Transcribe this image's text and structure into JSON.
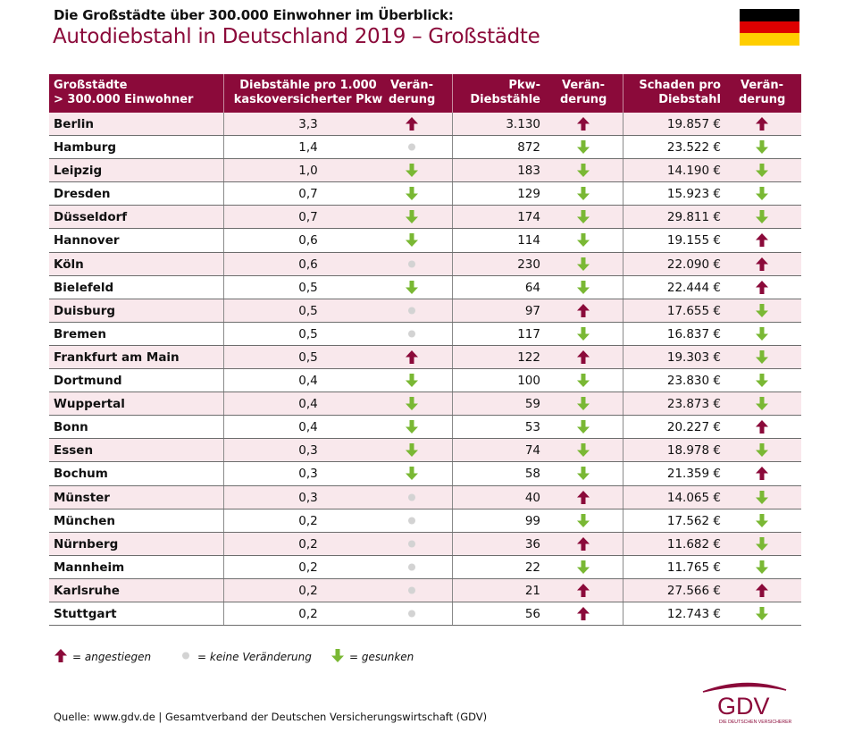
{
  "subtitle": "Die Großstädte über 300.000 Einwohner im Überblick:",
  "title": "Autodiebstahl in Deutschland 2019 – Großstädte",
  "flag_colors": [
    "#000000",
    "#dd0000",
    "#ffce00"
  ],
  "colors": {
    "header": "#8b0a3a",
    "up": "#8b0a3a",
    "down": "#7ab834",
    "none": "#d3d3d3",
    "row_alt": "#f9e8ec"
  },
  "chart_data": {
    "type": "table",
    "columns": [
      {
        "l1": "Großstädte",
        "l2": "> 300.000 Einwohner"
      },
      {
        "l1": "Diebstähle pro 1.000",
        "l2": "kaskoversicherter Pkw"
      },
      {
        "l1": "Verän-",
        "l2": "derung"
      },
      {
        "l1": "Pkw-",
        "l2": "Diebstähle"
      },
      {
        "l1": "Verän-",
        "l2": "derung"
      },
      {
        "l1": "Schaden pro",
        "l2": "Diebstahl"
      },
      {
        "l1": "Verän-",
        "l2": "derung"
      }
    ],
    "rows": [
      [
        "Berlin",
        "3,3",
        "up",
        "3.130",
        "up",
        "19.857 €",
        "up"
      ],
      [
        "Hamburg",
        "1,4",
        "none",
        "872",
        "down",
        "23.522 €",
        "down"
      ],
      [
        "Leipzig",
        "1,0",
        "down",
        "183",
        "down",
        "14.190 €",
        "down"
      ],
      [
        "Dresden",
        "0,7",
        "down",
        "129",
        "down",
        "15.923 €",
        "down"
      ],
      [
        "Düsseldorf",
        "0,7",
        "down",
        "174",
        "down",
        "29.811 €",
        "down"
      ],
      [
        "Hannover",
        "0,6",
        "down",
        "114",
        "down",
        "19.155 €",
        "up"
      ],
      [
        "Köln",
        "0,6",
        "none",
        "230",
        "down",
        "22.090 €",
        "up"
      ],
      [
        "Bielefeld",
        "0,5",
        "down",
        "64",
        "down",
        "22.444 €",
        "up"
      ],
      [
        "Duisburg",
        "0,5",
        "none",
        "97",
        "up",
        "17.655 €",
        "down"
      ],
      [
        "Bremen",
        "0,5",
        "none",
        "117",
        "down",
        "16.837 €",
        "down"
      ],
      [
        "Frankfurt am Main",
        "0,5",
        "up",
        "122",
        "up",
        "19.303 €",
        "down"
      ],
      [
        "Dortmund",
        "0,4",
        "down",
        "100",
        "down",
        "23.830 €",
        "down"
      ],
      [
        "Wuppertal",
        "0,4",
        "down",
        "59",
        "down",
        "23.873 €",
        "down"
      ],
      [
        "Bonn",
        "0,4",
        "down",
        "53",
        "down",
        "20.227 €",
        "up"
      ],
      [
        "Essen",
        "0,3",
        "down",
        "74",
        "down",
        "18.978 €",
        "down"
      ],
      [
        "Bochum",
        "0,3",
        "down",
        "58",
        "down",
        "21.359 €",
        "up"
      ],
      [
        "Münster",
        "0,3",
        "none",
        "40",
        "up",
        "14.065 €",
        "down"
      ],
      [
        "München",
        "0,2",
        "none",
        "99",
        "down",
        "17.562 €",
        "down"
      ],
      [
        "Nürnberg",
        "0,2",
        "none",
        "36",
        "up",
        "11.682 €",
        "down"
      ],
      [
        "Mannheim",
        "0,2",
        "none",
        "22",
        "down",
        "11.765 €",
        "down"
      ],
      [
        "Karlsruhe",
        "0,2",
        "none",
        "21",
        "up",
        "27.566 €",
        "up"
      ],
      [
        "Stuttgart",
        "0,2",
        "none",
        "56",
        "up",
        "12.743 €",
        "down"
      ]
    ]
  },
  "legend": {
    "up": "= angestiegen",
    "none": "= keine Veränderung",
    "down": "= gesunken"
  },
  "source": "Quelle: www.gdv.de | Gesamtverband der Deutschen Versicherungswirtschaft (GDV)",
  "logo": {
    "text": "GDV",
    "tagline": "DIE DEUTSCHEN VERSICHERER"
  }
}
